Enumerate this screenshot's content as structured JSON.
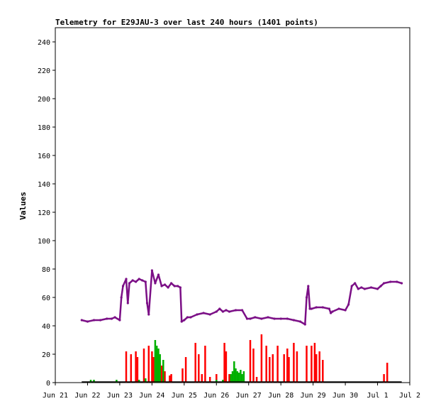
{
  "chart_data": {
    "type": "line",
    "title": "Telemetry for E29JAU-3 over last 240 hours (1401 points)",
    "ylabel": "Values",
    "xlabel": "",
    "ylim": [
      0,
      250
    ],
    "yticks": [
      0,
      20,
      40,
      60,
      80,
      100,
      120,
      140,
      160,
      180,
      200,
      220,
      240
    ],
    "xlim": [
      0,
      11
    ],
    "xticks": [
      {
        "pos": 0,
        "label": "Jun 21"
      },
      {
        "pos": 1,
        "label": "Jun 22"
      },
      {
        "pos": 2,
        "label": "Jun 23"
      },
      {
        "pos": 3,
        "label": "Jun 24"
      },
      {
        "pos": 4,
        "label": "Jun 25"
      },
      {
        "pos": 5,
        "label": "Jun 26"
      },
      {
        "pos": 6,
        "label": "Jun 27"
      },
      {
        "pos": 7,
        "label": "Jun 28"
      },
      {
        "pos": 8,
        "label": "Jun 29"
      },
      {
        "pos": 9,
        "label": "Jun 30"
      },
      {
        "pos": 10,
        "label": "Jul 1"
      },
      {
        "pos": 11,
        "label": "Jul 2"
      }
    ],
    "grid": false,
    "series": [
      {
        "color": "#7b0f86",
        "kind": "line",
        "x": [
          0.82,
          1.0,
          1.2,
          1.4,
          1.6,
          1.75,
          1.85,
          2.0,
          2.05,
          2.1,
          2.2,
          2.25,
          2.3,
          2.4,
          2.5,
          2.6,
          2.7,
          2.8,
          2.85,
          2.9,
          3.0,
          3.1,
          3.2,
          3.3,
          3.4,
          3.5,
          3.6,
          3.7,
          3.8,
          3.88,
          3.92,
          4.0,
          4.1,
          4.2,
          4.4,
          4.6,
          4.8,
          5.0,
          5.1,
          5.2,
          5.3,
          5.4,
          5.6,
          5.8,
          5.95,
          6.05,
          6.2,
          6.4,
          6.6,
          6.8,
          7.0,
          7.2,
          7.4,
          7.6,
          7.75,
          7.8,
          7.85,
          7.9,
          7.95,
          8.1,
          8.3,
          8.5,
          8.55,
          8.6,
          8.8,
          9.0,
          9.1,
          9.2,
          9.3,
          9.4,
          9.5,
          9.6,
          9.8,
          10.0,
          10.1,
          10.2,
          10.4,
          10.6,
          10.75
        ],
        "y": [
          44,
          43,
          44,
          44,
          45,
          45,
          46,
          44,
          60,
          68,
          73,
          56,
          70,
          72,
          71,
          73,
          72,
          71,
          56,
          48,
          79,
          70,
          76,
          68,
          69,
          67,
          70,
          68,
          68,
          67,
          43,
          44,
          46,
          46,
          48,
          49,
          48,
          50,
          52,
          50,
          51,
          50,
          51,
          51,
          45,
          45,
          46,
          45,
          46,
          45,
          45,
          45,
          44,
          43,
          41,
          60,
          68,
          52,
          52,
          53,
          53,
          52,
          49,
          50,
          52,
          51,
          55,
          68,
          70,
          66,
          67,
          66,
          67,
          66,
          68,
          70,
          71,
          71,
          70
        ]
      },
      {
        "color": "#ff0000",
        "kind": "spikes",
        "x": [
          2.2,
          2.35,
          2.5,
          2.55,
          2.75,
          2.9,
          3.0,
          3.05,
          3.15,
          3.25,
          3.3,
          3.4,
          3.55,
          3.6,
          3.95,
          4.05,
          4.35,
          4.45,
          4.55,
          4.65,
          4.8,
          5.0,
          5.25,
          5.3,
          5.4,
          6.05,
          6.15,
          6.25,
          6.4,
          6.55,
          6.65,
          6.75,
          6.9,
          7.1,
          7.2,
          7.25,
          7.4,
          7.5,
          7.8,
          7.95,
          8.05,
          8.1,
          8.2,
          8.3,
          10.2,
          10.3
        ],
        "y": [
          22,
          20,
          22,
          18,
          24,
          26,
          22,
          18,
          20,
          14,
          12,
          8,
          5,
          6,
          10,
          18,
          28,
          20,
          6,
          26,
          4,
          6,
          28,
          22,
          6,
          30,
          24,
          4,
          34,
          26,
          18,
          20,
          26,
          20,
          24,
          18,
          28,
          22,
          26,
          26,
          28,
          20,
          22,
          16,
          6,
          14
        ]
      },
      {
        "color": "#00b000",
        "kind": "spikes",
        "x": [
          1.1,
          1.2,
          1.9,
          2.6,
          2.8,
          3.1,
          3.15,
          3.2,
          3.25,
          3.35,
          5.0,
          5.2,
          5.45,
          5.5,
          5.55,
          5.6,
          5.65,
          5.7,
          5.75,
          5.8,
          5.85
        ],
        "y": [
          2,
          2,
          2,
          2,
          3,
          30,
          26,
          24,
          20,
          16,
          2,
          2,
          6,
          8,
          15,
          10,
          8,
          7,
          9,
          6,
          8
        ]
      }
    ]
  }
}
